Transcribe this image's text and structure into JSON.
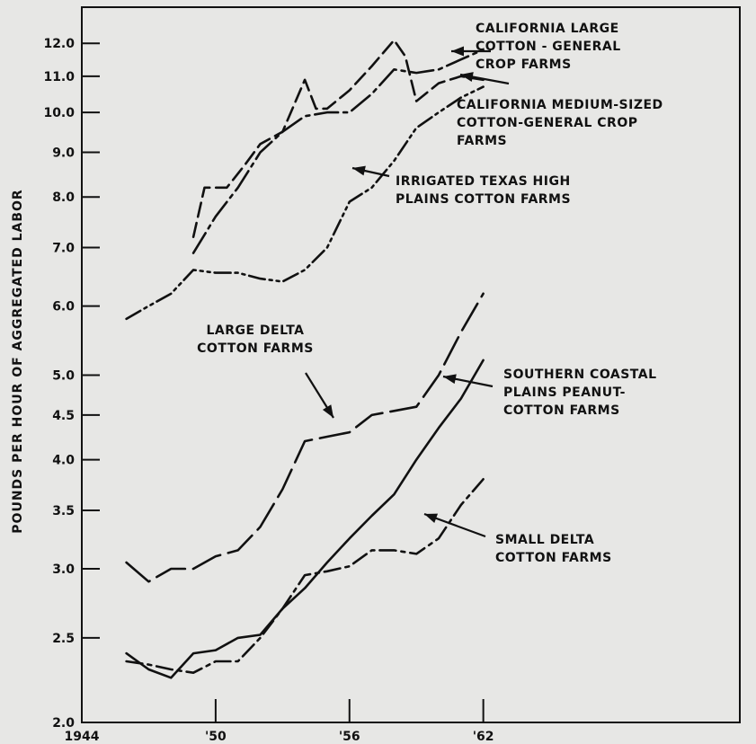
{
  "chart_data": {
    "type": "line",
    "ylabel": "POUNDS PER HOUR OF AGGREGATED LABOR",
    "yscale": "log",
    "ylim": [
      2.0,
      13.2
    ],
    "xlim": [
      1944,
      1973.5
    ],
    "yticks": [
      {
        "v": 2.0,
        "label": "2.0"
      },
      {
        "v": 2.5,
        "label": "2.5"
      },
      {
        "v": 3.0,
        "label": "3.0"
      },
      {
        "v": 3.5,
        "label": "3.5"
      },
      {
        "v": 4.0,
        "label": "4.0"
      },
      {
        "v": 4.5,
        "label": "4.5"
      },
      {
        "v": 5.0,
        "label": "5.0"
      },
      {
        "v": 6.0,
        "label": "6.0"
      },
      {
        "v": 7.0,
        "label": "7.0"
      },
      {
        "v": 8.0,
        "label": "8.0"
      },
      {
        "v": 9.0,
        "label": "9.0"
      },
      {
        "v": 10.0,
        "label": "10.0"
      },
      {
        "v": 11.0,
        "label": "11.0"
      },
      {
        "v": 12.0,
        "label": "12.0"
      }
    ],
    "xticks": [
      {
        "v": 1944,
        "label": "1944"
      },
      {
        "v": 1950,
        "label": "'50"
      },
      {
        "v": 1956,
        "label": "'56"
      },
      {
        "v": 1962,
        "label": "'62"
      }
    ],
    "series": [
      {
        "name": "California Large Cotton-General Crop Farms",
        "label_lines": [
          "CALIFORNIA LARGE",
          "COTTON - GENERAL",
          "CROP FARMS"
        ],
        "style": "longdash-dot",
        "x": [
          1949,
          1950,
          1951,
          1952,
          1953,
          1954,
          1955,
          1956,
          1957,
          1958,
          1959,
          1960,
          1961,
          1962
        ],
        "values": [
          6.9,
          7.6,
          8.2,
          9.0,
          9.5,
          9.9,
          10.0,
          10.0,
          10.5,
          11.2,
          11.1,
          11.2,
          11.5,
          11.8
        ]
      },
      {
        "name": "California Medium-Sized Cotton-General Crop Farms",
        "label_lines": [
          "CALIFORNIA MEDIUM-SIZED",
          "COTTON-GENERAL CROP",
          "FARMS"
        ],
        "style": "dashed",
        "x": [
          1949,
          1949.5,
          1950.5,
          1951.3,
          1952,
          1953,
          1954,
          1954.5,
          1955,
          1956,
          1957,
          1958,
          1958.5,
          1959,
          1960,
          1961,
          1962
        ],
        "values": [
          7.2,
          8.2,
          8.2,
          8.7,
          9.2,
          9.5,
          10.9,
          10.1,
          10.1,
          10.6,
          11.3,
          12.1,
          11.6,
          10.3,
          10.8,
          11.0,
          10.9
        ]
      },
      {
        "name": "Irrigated Texas High Plains Cotton Farms",
        "label_lines": [
          "IRRIGATED TEXAS HIGH",
          "PLAINS COTTON FARMS"
        ],
        "style": "dash-dot-dot",
        "x": [
          1946,
          1947,
          1948,
          1949,
          1950,
          1951,
          1952,
          1953,
          1954,
          1955,
          1956,
          1957,
          1958,
          1959,
          1960,
          1961,
          1962
        ],
        "values": [
          5.8,
          6.0,
          6.2,
          6.6,
          6.55,
          6.55,
          6.45,
          6.4,
          6.6,
          7.0,
          7.9,
          8.2,
          8.8,
          9.6,
          10.0,
          10.4,
          10.7
        ]
      },
      {
        "name": "Large Delta Cotton Farms",
        "label_lines": [
          "LARGE DELTA",
          "COTTON FARMS"
        ],
        "style": "longdash",
        "x": [
          1946,
          1947,
          1948,
          1949,
          1950,
          1951,
          1952,
          1953,
          1954,
          1955,
          1956,
          1957,
          1958,
          1959,
          1960,
          1961,
          1962
        ],
        "values": [
          3.05,
          2.9,
          3.0,
          3.0,
          3.1,
          3.15,
          3.35,
          3.7,
          4.2,
          4.25,
          4.3,
          4.5,
          4.55,
          4.6,
          5.0,
          5.6,
          6.2
        ]
      },
      {
        "name": "Southern Coastal Plains Peanut-Cotton Farms",
        "label_lines": [
          "SOUTHERN COASTAL",
          "PLAINS PEANUT-",
          "COTTON FARMS"
        ],
        "style": "solid",
        "x": [
          1946,
          1947,
          1948,
          1949,
          1950,
          1951,
          1952,
          1953,
          1954,
          1955,
          1956,
          1957,
          1958,
          1959,
          1960,
          1961,
          1962
        ],
        "values": [
          2.4,
          2.3,
          2.25,
          2.4,
          2.42,
          2.5,
          2.52,
          2.7,
          2.85,
          3.05,
          3.25,
          3.45,
          3.65,
          4.0,
          4.35,
          4.7,
          5.2
        ]
      },
      {
        "name": "Small Delta Cotton Farms",
        "label_lines": [
          "SMALL DELTA",
          "COTTON FARMS"
        ],
        "style": "dash-dot",
        "x": [
          1946,
          1947,
          1948,
          1949,
          1950,
          1951,
          1952,
          1953,
          1954,
          1955,
          1956,
          1957,
          1958,
          1959,
          1960,
          1961,
          1962
        ],
        "values": [
          2.35,
          2.33,
          2.3,
          2.28,
          2.35,
          2.35,
          2.5,
          2.7,
          2.95,
          2.98,
          3.02,
          3.15,
          3.15,
          3.12,
          3.25,
          3.55,
          3.8
        ]
      }
    ]
  }
}
